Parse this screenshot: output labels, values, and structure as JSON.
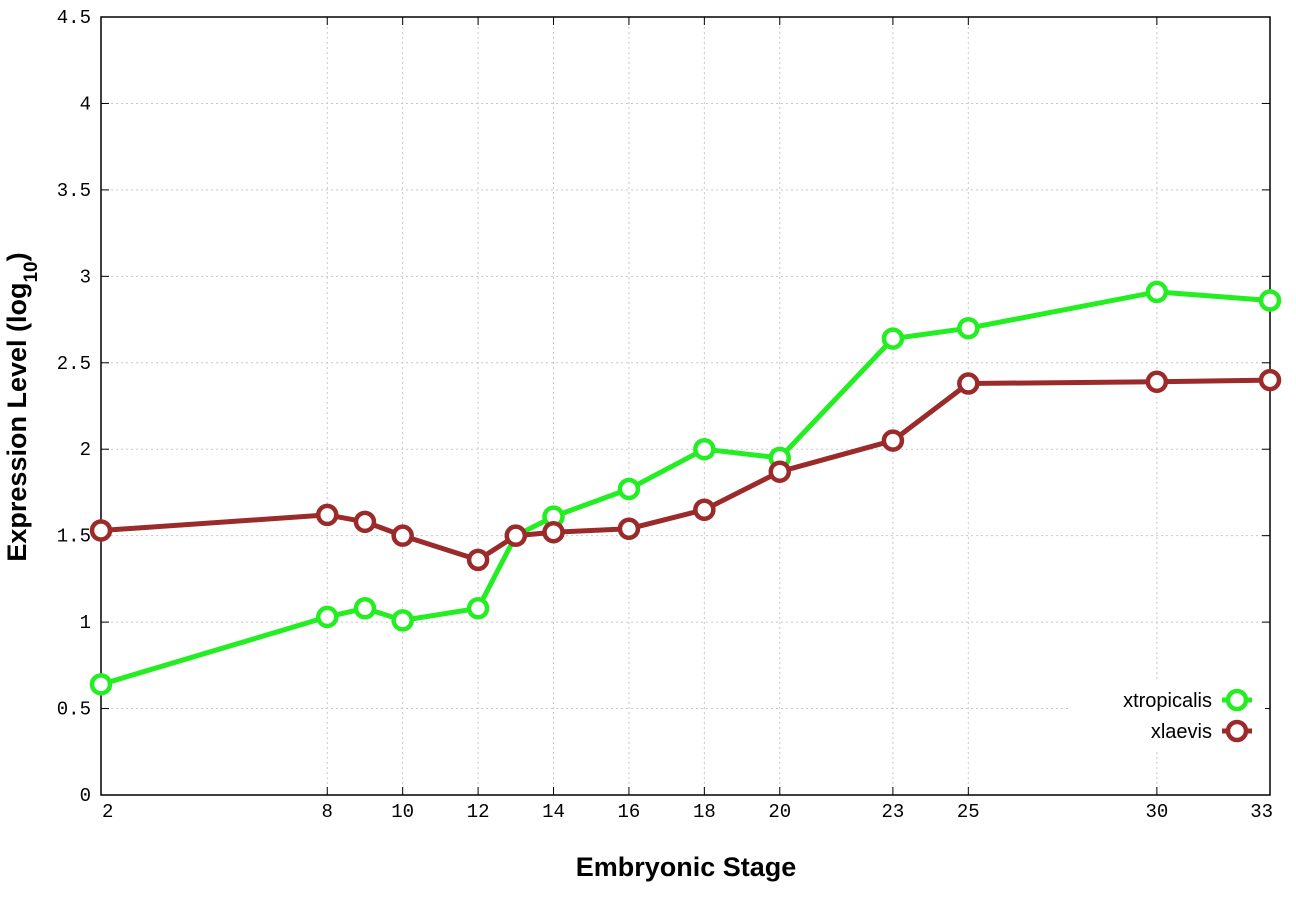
{
  "chart_data": {
    "type": "line",
    "xlabel": "Embryonic Stage",
    "ylabel_text": "Expression Level (log",
    "ylabel_sub": "10",
    "ylabel_close": ")",
    "x": [
      2,
      8,
      9,
      10,
      12,
      13,
      14,
      16,
      18,
      20,
      23,
      25,
      30,
      33
    ],
    "x_ticks": [
      2,
      8,
      10,
      12,
      14,
      16,
      18,
      20,
      23,
      25,
      30,
      33
    ],
    "y_ticks": [
      "0",
      "0.5",
      "1",
      "1.5",
      "2",
      "2.5",
      "3",
      "3.5",
      "4",
      "4.5"
    ],
    "xlim": [
      2,
      33
    ],
    "ylim": [
      0,
      4.5
    ],
    "grid": true,
    "legend_position": "bottom-right",
    "series": [
      {
        "name": "xtropicalis",
        "color": "#22ee22",
        "values": [
          0.64,
          1.03,
          1.08,
          1.01,
          1.08,
          1.5,
          1.61,
          1.77,
          2.0,
          1.95,
          2.64,
          2.7,
          2.91,
          2.86
        ]
      },
      {
        "name": "xlaevis",
        "color": "#9b2a2a",
        "values": [
          1.53,
          1.62,
          1.58,
          1.5,
          1.36,
          1.5,
          1.52,
          1.54,
          1.65,
          1.87,
          2.05,
          2.38,
          2.39,
          2.4
        ]
      }
    ]
  }
}
